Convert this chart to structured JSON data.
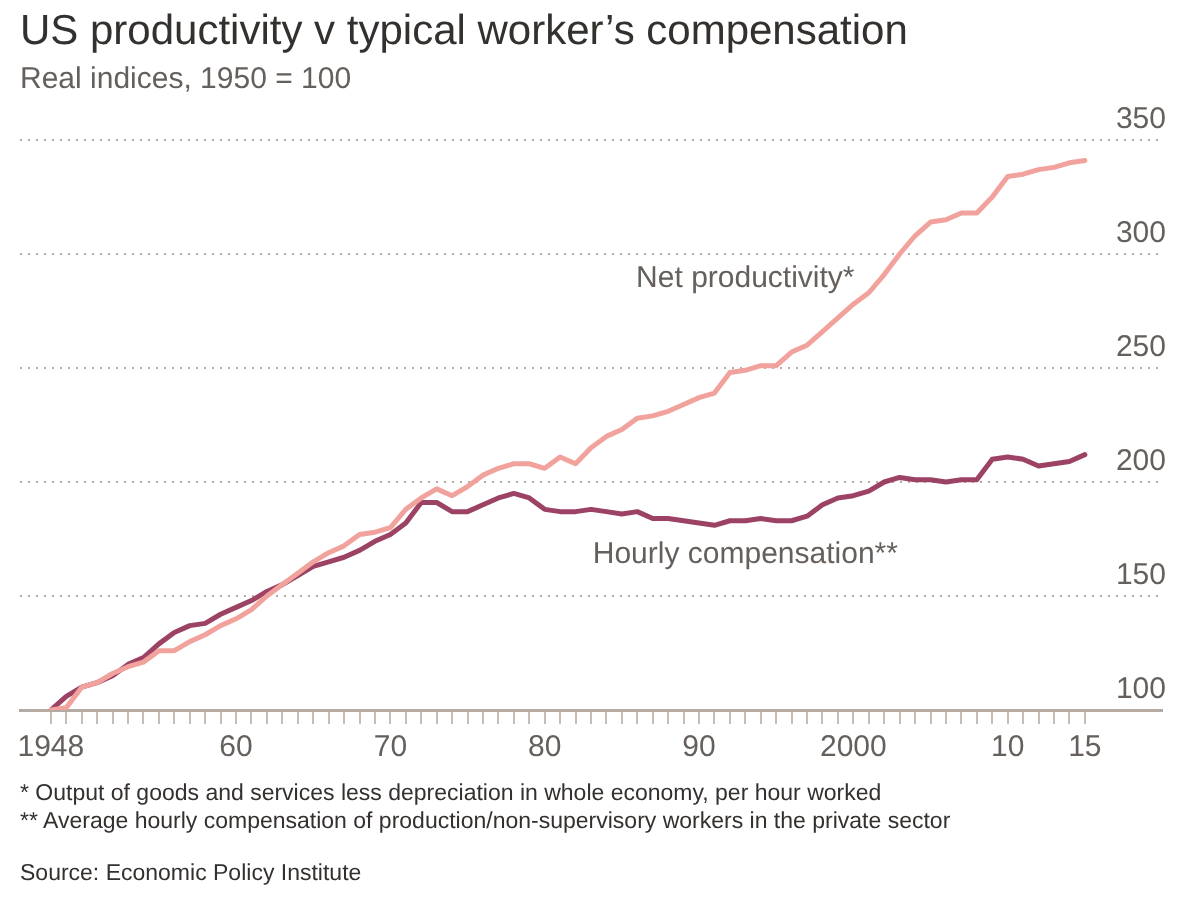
{
  "chart_data": {
    "type": "line",
    "title": "US productivity v typical worker’s compensation",
    "subtitle": "Real indices, 1950 = 100",
    "x": [
      1948,
      1949,
      1950,
      1951,
      1952,
      1953,
      1954,
      1955,
      1956,
      1957,
      1958,
      1959,
      1960,
      1961,
      1962,
      1963,
      1964,
      1965,
      1966,
      1967,
      1968,
      1969,
      1970,
      1971,
      1972,
      1973,
      1974,
      1975,
      1976,
      1977,
      1978,
      1979,
      1980,
      1981,
      1982,
      1983,
      1984,
      1985,
      1986,
      1987,
      1988,
      1989,
      1990,
      1991,
      1992,
      1993,
      1994,
      1995,
      1996,
      1997,
      1998,
      1999,
      2000,
      2001,
      2002,
      2003,
      2004,
      2005,
      2006,
      2007,
      2008,
      2009,
      2010,
      2011,
      2012,
      2013,
      2014,
      2015
    ],
    "series": [
      {
        "name": "Net productivity*",
        "color": "#f2a29c",
        "values": [
          100,
          101,
          110,
          112,
          116,
          119,
          121,
          126,
          126,
          130,
          133,
          137,
          140,
          144,
          150,
          155,
          160,
          165,
          169,
          172,
          177,
          178,
          180,
          188,
          193,
          197,
          194,
          198,
          203,
          206,
          208,
          208,
          206,
          211,
          208,
          215,
          220,
          223,
          228,
          229,
          231,
          234,
          237,
          239,
          248,
          249,
          251,
          251,
          257,
          260,
          266,
          272,
          278,
          283,
          291,
          300,
          308,
          314,
          315,
          318,
          318,
          325,
          334,
          335,
          337,
          338,
          340,
          341
        ]
      },
      {
        "name": "Hourly compensation**",
        "color": "#9c4264",
        "values": [
          100,
          106,
          110,
          112,
          115,
          120,
          123,
          129,
          134,
          137,
          138,
          142,
          145,
          148,
          152,
          155,
          159,
          163,
          165,
          167,
          170,
          174,
          177,
          182,
          191,
          191,
          187,
          187,
          190,
          193,
          195,
          193,
          188,
          187,
          187,
          188,
          187,
          186,
          187,
          184,
          184,
          183,
          182,
          181,
          183,
          183,
          184,
          183,
          183,
          185,
          190,
          193,
          194,
          196,
          200,
          202,
          201,
          201,
          200,
          201,
          201,
          210,
          211,
          210,
          207,
          208,
          209,
          212
        ]
      }
    ],
    "xlim": [
      1946,
      2020
    ],
    "xticks": [
      {
        "value": 1948,
        "label": "1948"
      },
      {
        "value": 1949,
        "label": null
      },
      {
        "value": 1950,
        "label": null
      },
      {
        "value": 1951,
        "label": null
      },
      {
        "value": 1952,
        "label": null
      },
      {
        "value": 1953,
        "label": null
      },
      {
        "value": 1954,
        "label": null
      },
      {
        "value": 1955,
        "label": null
      },
      {
        "value": 1956,
        "label": null
      },
      {
        "value": 1957,
        "label": null
      },
      {
        "value": 1958,
        "label": null
      },
      {
        "value": 1959,
        "label": null
      },
      {
        "value": 1960,
        "label": "60"
      },
      {
        "value": 1961,
        "label": null
      },
      {
        "value": 1962,
        "label": null
      },
      {
        "value": 1963,
        "label": null
      },
      {
        "value": 1964,
        "label": null
      },
      {
        "value": 1965,
        "label": null
      },
      {
        "value": 1966,
        "label": null
      },
      {
        "value": 1967,
        "label": null
      },
      {
        "value": 1968,
        "label": null
      },
      {
        "value": 1969,
        "label": null
      },
      {
        "value": 1970,
        "label": "70"
      },
      {
        "value": 1971,
        "label": null
      },
      {
        "value": 1972,
        "label": null
      },
      {
        "value": 1973,
        "label": null
      },
      {
        "value": 1974,
        "label": null
      },
      {
        "value": 1975,
        "label": null
      },
      {
        "value": 1976,
        "label": null
      },
      {
        "value": 1977,
        "label": null
      },
      {
        "value": 1978,
        "label": null
      },
      {
        "value": 1979,
        "label": null
      },
      {
        "value": 1980,
        "label": "80"
      },
      {
        "value": 1981,
        "label": null
      },
      {
        "value": 1982,
        "label": null
      },
      {
        "value": 1983,
        "label": null
      },
      {
        "value": 1984,
        "label": null
      },
      {
        "value": 1985,
        "label": null
      },
      {
        "value": 1986,
        "label": null
      },
      {
        "value": 1987,
        "label": null
      },
      {
        "value": 1988,
        "label": null
      },
      {
        "value": 1989,
        "label": null
      },
      {
        "value": 1990,
        "label": "90"
      },
      {
        "value": 1991,
        "label": null
      },
      {
        "value": 1992,
        "label": null
      },
      {
        "value": 1993,
        "label": null
      },
      {
        "value": 1994,
        "label": null
      },
      {
        "value": 1995,
        "label": null
      },
      {
        "value": 1996,
        "label": null
      },
      {
        "value": 1997,
        "label": null
      },
      {
        "value": 1998,
        "label": null
      },
      {
        "value": 1999,
        "label": null
      },
      {
        "value": 2000,
        "label": "2000"
      },
      {
        "value": 2001,
        "label": null
      },
      {
        "value": 2002,
        "label": null
      },
      {
        "value": 2003,
        "label": null
      },
      {
        "value": 2004,
        "label": null
      },
      {
        "value": 2005,
        "label": null
      },
      {
        "value": 2006,
        "label": null
      },
      {
        "value": 2007,
        "label": null
      },
      {
        "value": 2008,
        "label": null
      },
      {
        "value": 2009,
        "label": null
      },
      {
        "value": 2010,
        "label": "10"
      },
      {
        "value": 2011,
        "label": null
      },
      {
        "value": 2012,
        "label": null
      },
      {
        "value": 2013,
        "label": null
      },
      {
        "value": 2014,
        "label": null
      },
      {
        "value": 2015,
        "label": "15"
      }
    ],
    "ylim": [
      100,
      350
    ],
    "yticks": [
      100,
      150,
      200,
      250,
      300,
      350
    ],
    "grid": "y",
    "legend": false,
    "marker": "none",
    "line_style": "solid",
    "annotations": [
      "* Output of goods and services less depreciation in whole economy, per hour worked",
      "** Average hourly compensation of production/non-supervisory workers in the private sector",
      "Source: Economic Policy Institute"
    ]
  }
}
